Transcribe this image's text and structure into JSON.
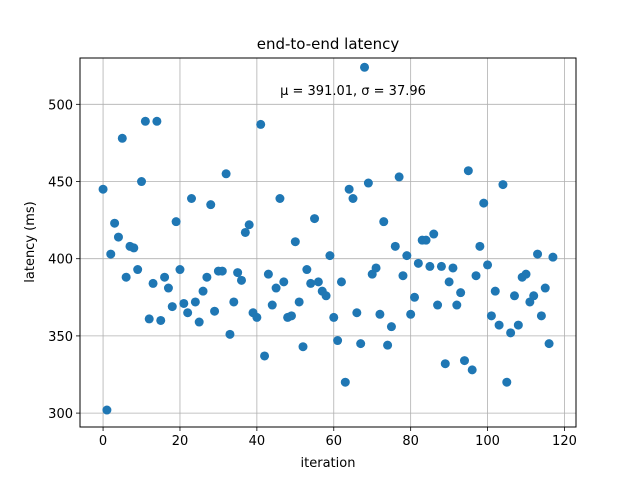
{
  "chart_data": {
    "type": "scatter",
    "title": "end-to-end latency",
    "xlabel": "iteration",
    "ylabel": "latency (ms)",
    "annotation": "μ = 391.01, σ = 37.96",
    "xlim": [
      -6,
      123
    ],
    "ylim": [
      291,
      530
    ],
    "xticks": [
      0,
      20,
      40,
      60,
      80,
      100,
      120
    ],
    "yticks": [
      300,
      350,
      400,
      450,
      500
    ],
    "grid": true,
    "marker_color": "#1f77b4",
    "x": [
      0,
      1,
      2,
      3,
      4,
      5,
      6,
      7,
      8,
      9,
      10,
      11,
      12,
      13,
      14,
      15,
      16,
      17,
      18,
      19,
      20,
      21,
      22,
      23,
      24,
      25,
      26,
      27,
      28,
      29,
      30,
      31,
      32,
      33,
      34,
      35,
      36,
      37,
      38,
      39,
      40,
      41,
      42,
      43,
      44,
      45,
      46,
      47,
      48,
      49,
      50,
      51,
      52,
      53,
      54,
      55,
      56,
      57,
      58,
      59,
      60,
      61,
      62,
      63,
      64,
      65,
      66,
      67,
      68,
      69,
      70,
      71,
      72,
      73,
      74,
      75,
      76,
      77,
      78,
      79,
      80,
      81,
      82,
      83,
      84,
      85,
      86,
      87,
      88,
      89,
      90,
      91,
      92,
      93,
      94,
      95,
      96,
      97,
      98,
      99,
      100,
      101,
      102,
      103,
      104,
      105,
      106,
      107,
      108,
      109,
      110,
      111,
      112,
      113,
      114,
      115,
      116,
      117
    ],
    "y": [
      445,
      302,
      403,
      423,
      414,
      478,
      388,
      408,
      407,
      393,
      450,
      489,
      361,
      384,
      489,
      360,
      388,
      381,
      369,
      424,
      393,
      371,
      365,
      439,
      372,
      359,
      379,
      388,
      435,
      366,
      392,
      392,
      455,
      351,
      372,
      391,
      386,
      417,
      422,
      365,
      362,
      487,
      337,
      390,
      370,
      381,
      439,
      385,
      362,
      363,
      411,
      372,
      343,
      393,
      384,
      426,
      385,
      379,
      376,
      402,
      362,
      347,
      385,
      320,
      445,
      439,
      365,
      345,
      524,
      449,
      390,
      394,
      364,
      424,
      344,
      356,
      408,
      453,
      389,
      402,
      364,
      375,
      397,
      412,
      412,
      395,
      416,
      370,
      395,
      332,
      385,
      394,
      370,
      378,
      334,
      457,
      328,
      389,
      408,
      436,
      396,
      363,
      379,
      357,
      448,
      320,
      352,
      376,
      357,
      388,
      390,
      372,
      376,
      403,
      363,
      381,
      345,
      401
    ]
  }
}
